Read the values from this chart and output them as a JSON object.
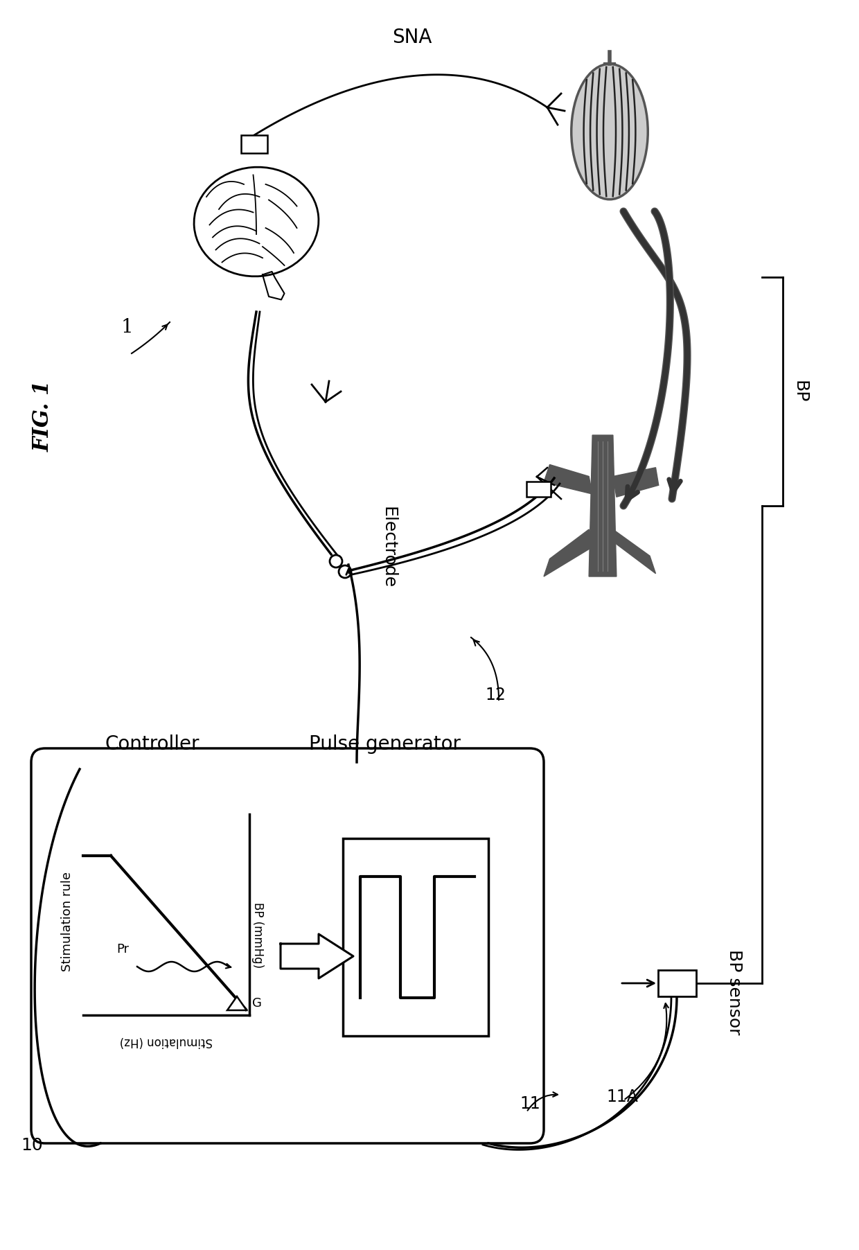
{
  "bg_color": "#ffffff",
  "line_color": "#000000",
  "dark_gray": "#555555",
  "med_gray": "#888888",
  "light_gray": "#cccccc",
  "labels": {
    "fig_title": "FIG. 1",
    "SNA": "SNA",
    "Electrode": "Electrode",
    "BP": "BP",
    "Controller": "Controller",
    "Pulse_generator": "Pulse generator",
    "BP_sensor": "BP sensor",
    "Stimulation_rule": "Stimulation rule",
    "Stimulation_Hz": "Stimulation (Hz)",
    "BP_mmHg": "BP (mmHg)",
    "G": "G",
    "Pr": "Pr",
    "num_1": "1",
    "num_10": "10",
    "num_11": "11",
    "num_11A": "11A",
    "num_12": "12"
  }
}
